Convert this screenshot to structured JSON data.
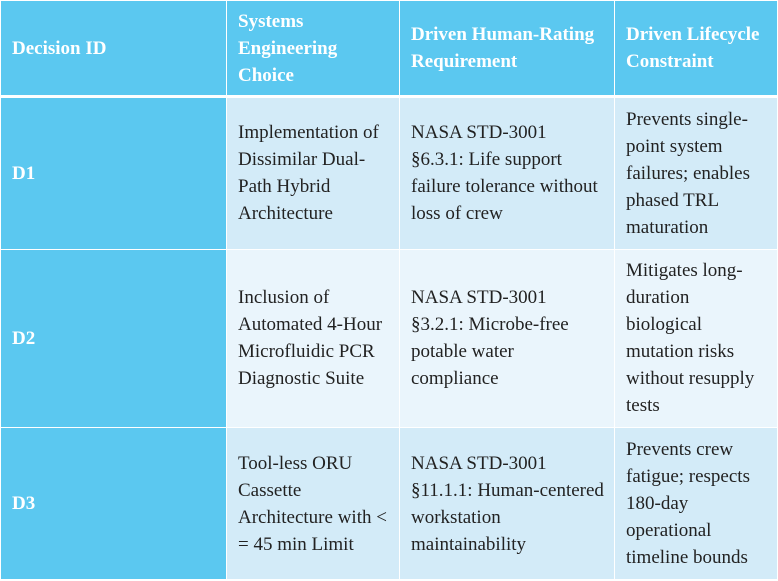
{
  "colors": {
    "header_bg": "#5bc8f0",
    "row_dark_bg": "#d3ebf8",
    "row_light_bg": "#eaf5fc",
    "header_text": "#ffffff",
    "body_text": "#222222"
  },
  "table": {
    "headers": [
      "Decision ID",
      "Systems Engineering Choice",
      "Driven Human-Rating Requirement",
      "Driven Lifecycle Constraint"
    ],
    "rows": [
      {
        "id": "D1",
        "choice": "Implementation of Dissimilar Dual-Path Hybrid Architecture",
        "requirement": "NASA STD-3001 §6.3.1: Life support failure tolerance without loss of crew",
        "constraint": "Prevents single-point system failures; enables phased TRL maturation"
      },
      {
        "id": "D2",
        "choice": "Inclusion of Automated 4-Hour Microfluidic PCR Diagnostic Suite",
        "requirement": "NASA STD-3001 §3.2.1: Microbe-free potable water compliance",
        "constraint": "Mitigates long-duration biological mutation risks without resupply tests"
      },
      {
        "id": "D3",
        "choice": "Tool-less ORU Cassette Architecture with < = 45 min Limit",
        "requirement": "NASA STD-3001 §11.1.1: Human-centered workstation maintainability",
        "constraint": "Prevents crew fatigue; respects 180-day operational timeline bounds"
      }
    ]
  }
}
